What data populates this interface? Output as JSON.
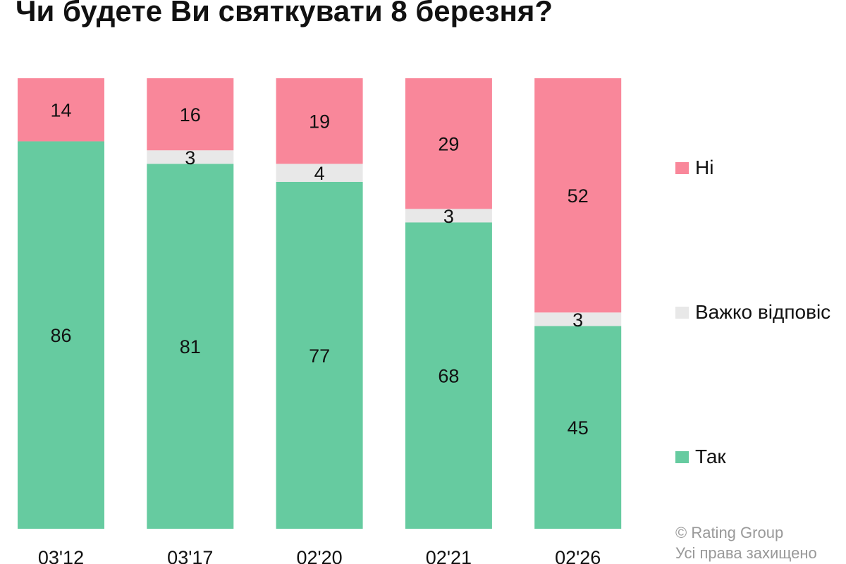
{
  "chart_data": {
    "type": "bar",
    "stacked": true,
    "title": "Чи будете Ви святкувати 8 березня?",
    "categories": [
      "03'12",
      "03'17",
      "02'20",
      "02'21",
      "02'26"
    ],
    "series": [
      {
        "name": "Так",
        "color": "#66cba0",
        "values": [
          86,
          81,
          77,
          68,
          45
        ]
      },
      {
        "name": "Важко відповіс",
        "color": "#e8e8e8",
        "values": [
          0,
          3,
          4,
          3,
          3
        ]
      },
      {
        "name": "Ні",
        "color": "#f9879a",
        "values": [
          14,
          16,
          19,
          29,
          52
        ]
      }
    ],
    "ylim": [
      0,
      100
    ],
    "grid": false,
    "legend_position": "right"
  },
  "credit": {
    "line1": "© Rating Group",
    "line2": "Усі права захищено"
  }
}
